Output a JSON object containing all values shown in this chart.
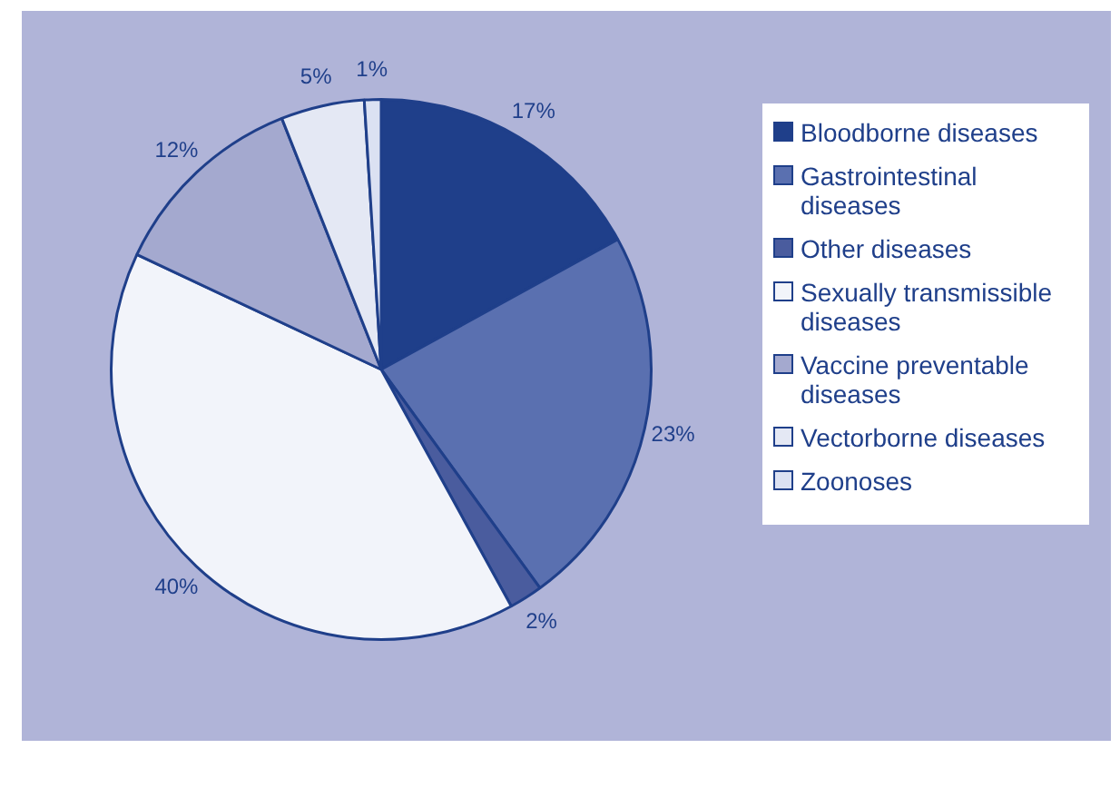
{
  "chart_data": {
    "type": "pie",
    "categories": [
      "Bloodborne diseases",
      "Gastrointestinal diseases",
      "Other diseases",
      "Sexually transmissible diseases",
      "Vaccine preventable diseases",
      "Vectorborne diseases",
      "Zoonoses"
    ],
    "values": [
      17,
      23,
      2,
      40,
      12,
      5,
      1
    ],
    "colors": [
      "#1f3f8a",
      "#5a70b0",
      "#4a5c9e",
      "#f2f4fa",
      "#a4a9cf",
      "#e4e8f4",
      "#dbe1f2"
    ],
    "value_labels": [
      "17%",
      "23%",
      "2%",
      "40%",
      "12%",
      "5%",
      "1%"
    ],
    "legend": "right"
  }
}
